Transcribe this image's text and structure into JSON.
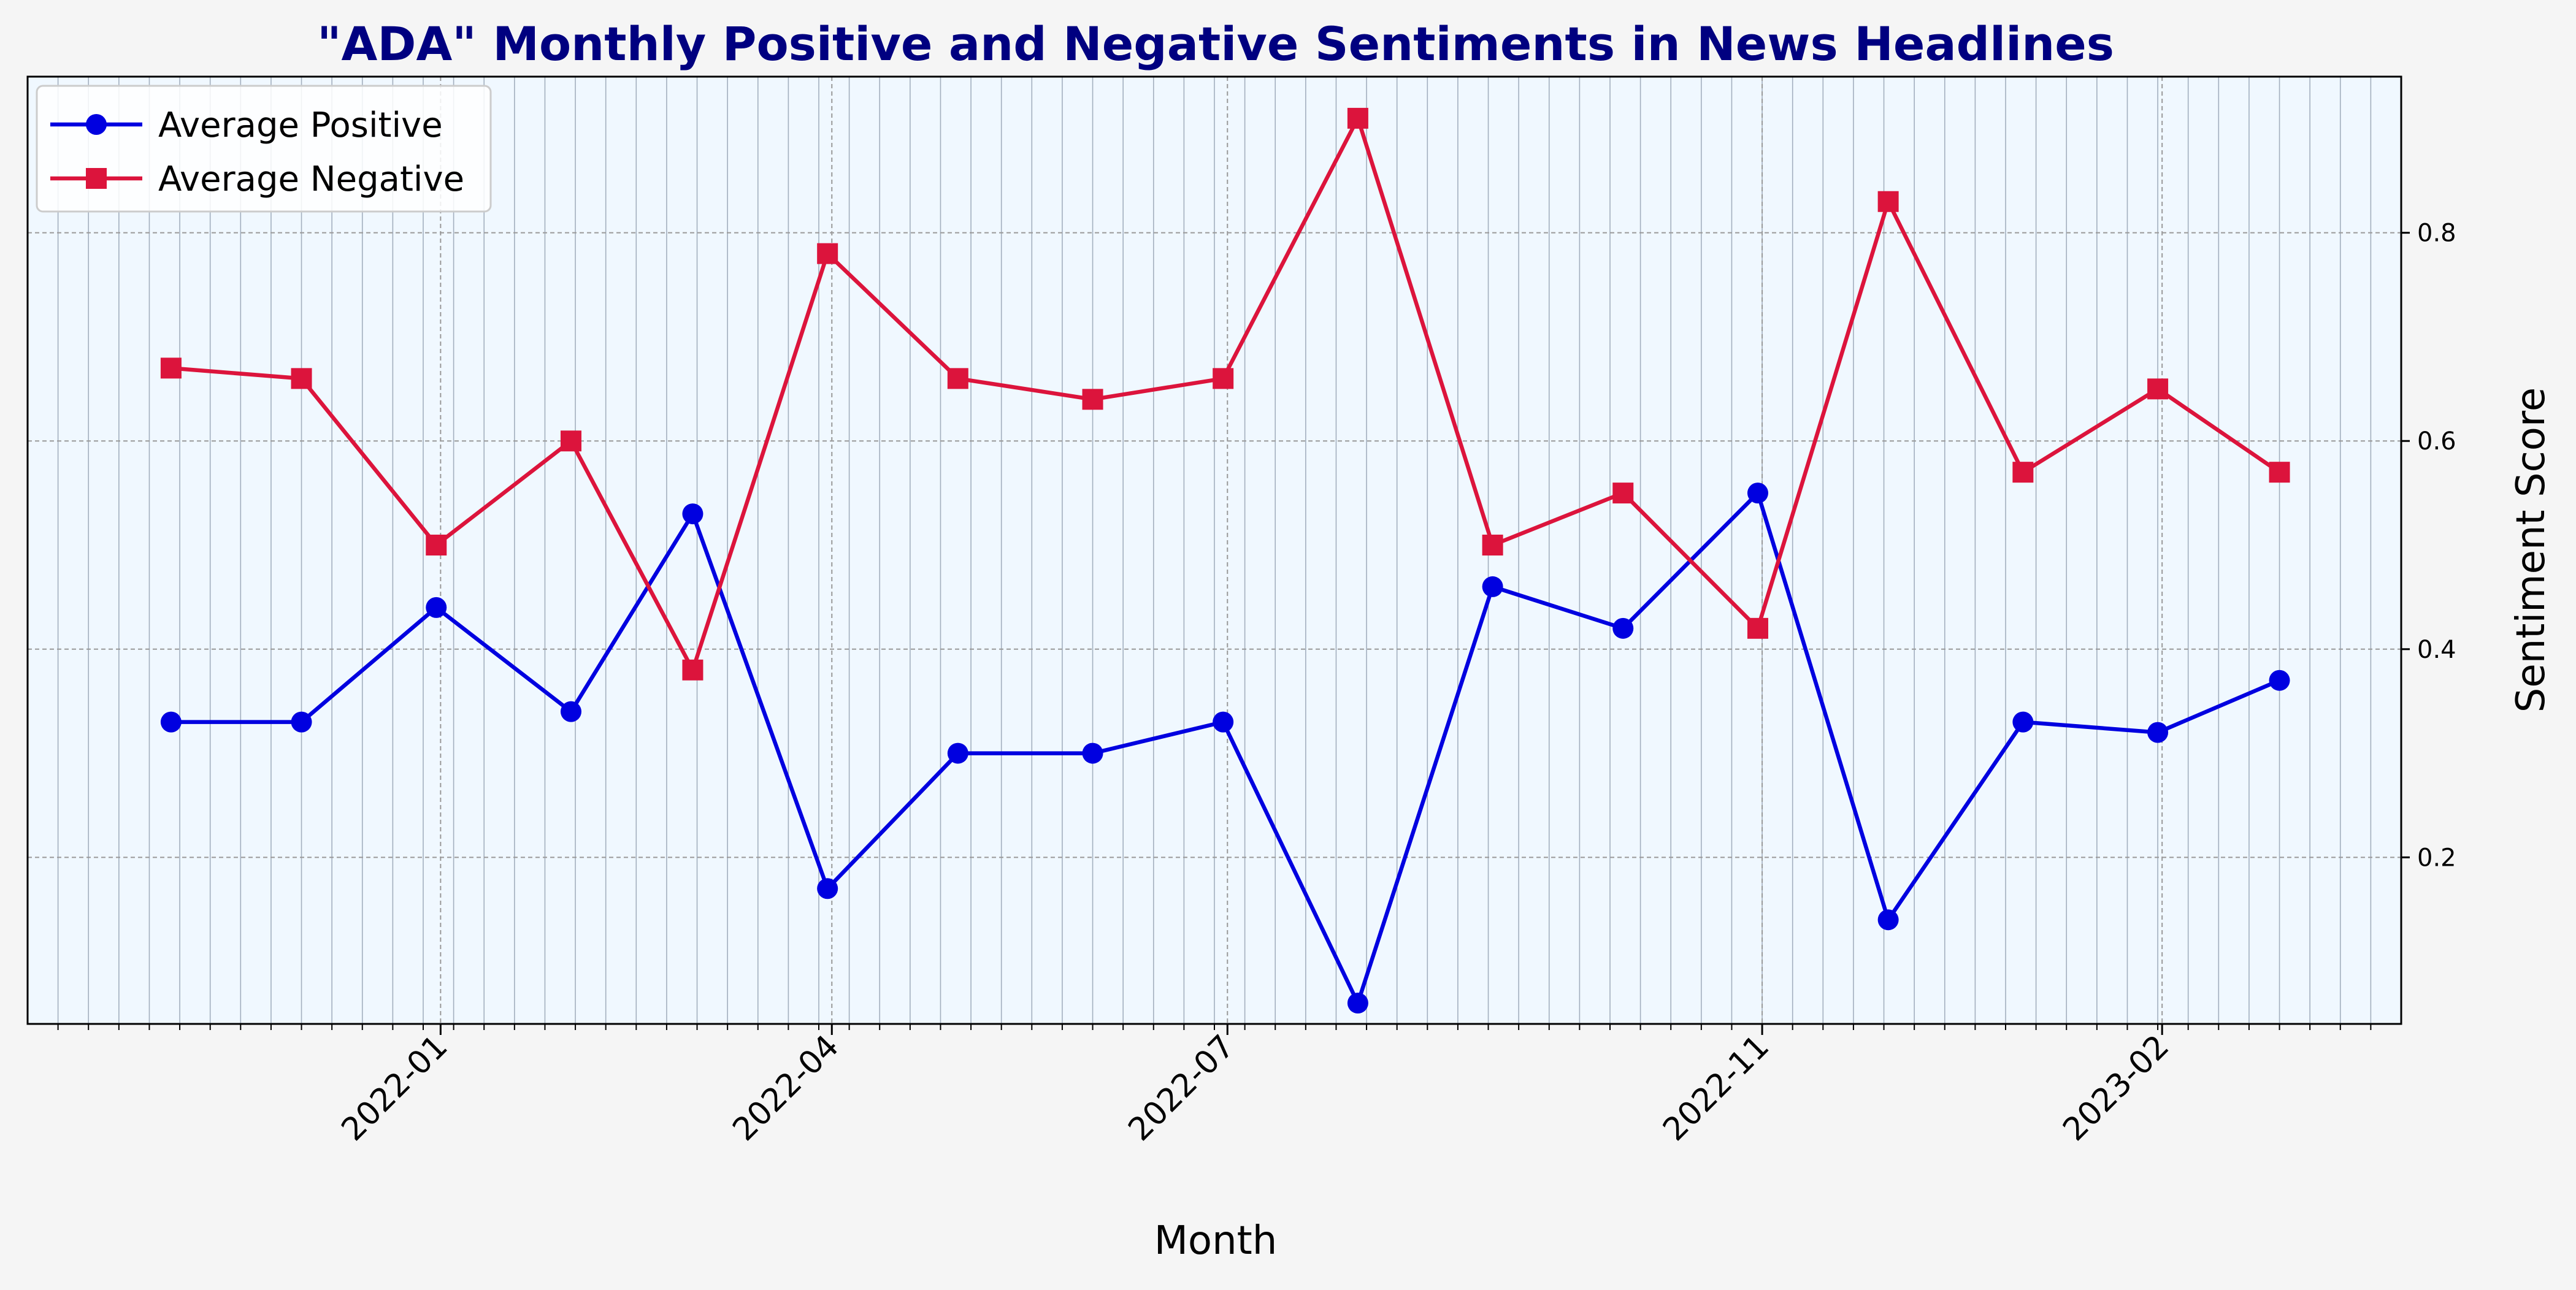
{
  "chart_data": {
    "type": "line",
    "title": "\"ADA\" Monthly Positive and Negative Sentiments in News Headlines",
    "xlabel": "Month",
    "ylabel": "Sentiment Score",
    "x": [
      "2021-10-31",
      "2021-11-30",
      "2021-12-31",
      "2022-01-31",
      "2022-02-28",
      "2022-03-31",
      "2022-04-30",
      "2022-05-31",
      "2022-06-30",
      "2022-07-31",
      "2022-08-31",
      "2022-09-30",
      "2022-10-31",
      "2022-11-30",
      "2022-12-31",
      "2023-01-31",
      "2023-02-28"
    ],
    "xlim": [
      "2021-09-28",
      "2023-03-28"
    ],
    "xticks": [
      "2022-01",
      "2022-04",
      "2022-07",
      "2022-11",
      "2023-02"
    ],
    "ylim": [
      0.04,
      0.95
    ],
    "yticks": [
      "0.2",
      "0.4",
      "0.6",
      "0.8"
    ],
    "yaxis_position": "right",
    "grid": true,
    "legend_position": "top-left",
    "background": "#f0f8ff",
    "series": [
      {
        "name": "Average Positive",
        "color": "#0000e0",
        "marker": "circle",
        "values": [
          0.33,
          0.33,
          0.44,
          0.34,
          0.53,
          0.17,
          0.3,
          0.3,
          0.33,
          0.06,
          0.46,
          0.42,
          0.55,
          0.14,
          0.33,
          0.32,
          0.37
        ]
      },
      {
        "name": "Average Negative",
        "color": "#dc143c",
        "marker": "square",
        "values": [
          0.67,
          0.66,
          0.5,
          0.6,
          0.38,
          0.78,
          0.66,
          0.64,
          0.66,
          0.91,
          0.5,
          0.55,
          0.42,
          0.83,
          0.57,
          0.65,
          0.57
        ]
      }
    ]
  }
}
